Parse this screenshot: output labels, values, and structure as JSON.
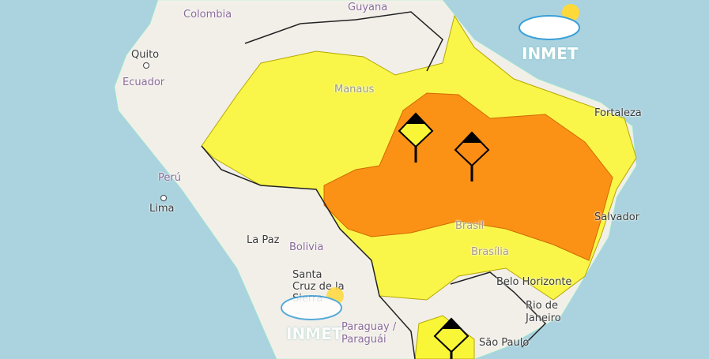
{
  "map": {
    "labels": {
      "colombia": "Colombia",
      "guyana": "Guyana",
      "quito": "Quito",
      "ecuador": "Ecuador",
      "manaus": "Manaus",
      "fortaleza": "Fortaleza",
      "peru": "Perú",
      "lima": "Lima",
      "la_paz": "La Paz",
      "bolivia": "Bolivia",
      "santa_cruz": "Santa Cruz de la Sierra",
      "brasil": "Brasil",
      "brasilia": "Brasília",
      "salvador": "Salvador",
      "belo_horizonte": "Belo Horizonte",
      "rio": "Rio de Janeiro",
      "paraguay": "Paraguay / Paraguái",
      "sao_paulo": "São Paulo"
    },
    "colors": {
      "ocean": "#aad3df",
      "land": "#f2efe9",
      "yellow_alert": "#f9f637",
      "orange_alert": "#fb8c14",
      "border": "#222222"
    },
    "alerts": [
      {
        "level": "yellow",
        "icon": "warning-marker-yellow"
      },
      {
        "level": "orange",
        "icon": "warning-marker-orange"
      },
      {
        "level": "yellow",
        "icon": "warning-marker-yellow"
      }
    ]
  },
  "branding": {
    "logo_text": "INMET",
    "watermark_text": "INMET"
  }
}
